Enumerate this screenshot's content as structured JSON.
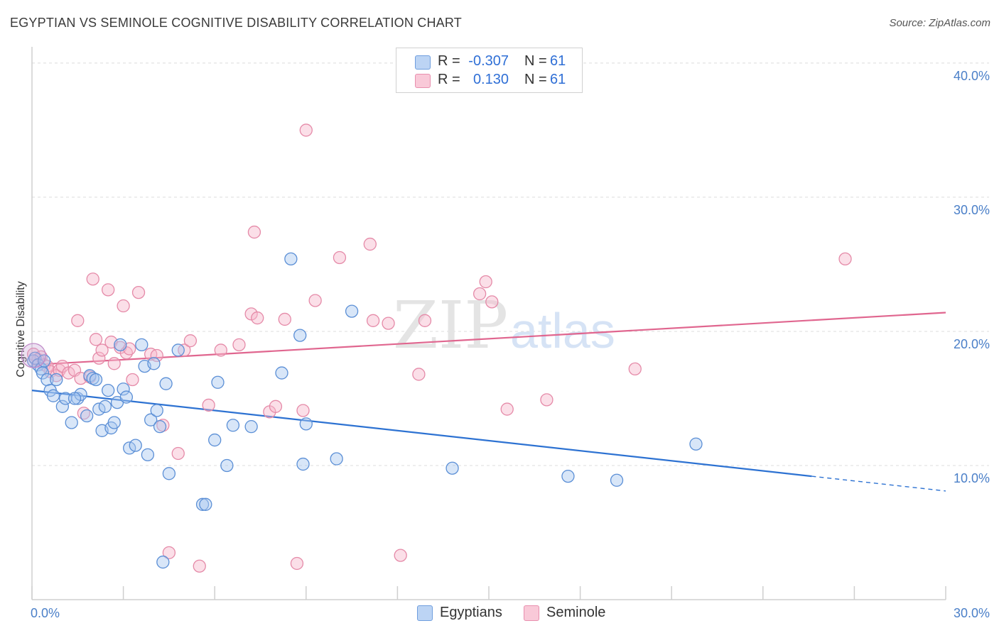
{
  "header": {
    "title": "EGYPTIAN VS SEMINOLE COGNITIVE DISABILITY CORRELATION CHART",
    "source": "Source: ZipAtlas.com"
  },
  "watermark": {
    "zip": "ZIP",
    "atlas": "atlas"
  },
  "legend": {
    "rows": [
      {
        "r_label": "R =",
        "r_value": "-0.307",
        "n_label": "N =",
        "n_value": "61",
        "color": "#a9c8f0"
      },
      {
        "r_label": "R =",
        "r_value": "0.130",
        "n_label": "N =",
        "n_value": "61",
        "color": "#f7b8cc"
      }
    ]
  },
  "bottom_legend": {
    "egyptians": "Egyptians",
    "seminole": "Seminole"
  },
  "colors": {
    "egyptians_fill": "#a9c8f0",
    "egyptians_stroke": "#5b8fd6",
    "egyptians_line": "#2d72d2",
    "seminole_fill": "#f7b8cc",
    "seminole_stroke": "#e58aa8",
    "seminole_line": "#e0668f",
    "tick_text": "#4a7fc8",
    "grid": "#dcdcdc"
  },
  "chart_data": {
    "type": "scatter",
    "title": "EGYPTIAN VS SEMINOLE COGNITIVE DISABILITY CORRELATION CHART",
    "xlabel": "",
    "ylabel": "Cognitive Disability",
    "xlim": [
      0,
      30
    ],
    "ylim": [
      0,
      41
    ],
    "x_tick_labels": [
      "0.0%",
      "30.0%"
    ],
    "y_ticks": [
      10,
      20,
      30,
      40
    ],
    "y_tick_labels": [
      "10.0%",
      "20.0%",
      "30.0%",
      "40.0%"
    ],
    "grid": true,
    "legend_position": "top-center",
    "series": [
      {
        "name": "Egyptians",
        "points": [
          [
            0.05,
            17.8
          ],
          [
            0.1,
            18.0
          ],
          [
            0.2,
            17.5
          ],
          [
            0.3,
            17.2
          ],
          [
            0.35,
            16.9
          ],
          [
            0.4,
            17.8
          ],
          [
            0.5,
            16.4
          ],
          [
            0.6,
            15.6
          ],
          [
            0.7,
            15.2
          ],
          [
            0.8,
            16.4
          ],
          [
            1.0,
            14.4
          ],
          [
            1.1,
            15.0
          ],
          [
            1.3,
            13.2
          ],
          [
            1.5,
            15.0
          ],
          [
            1.6,
            15.3
          ],
          [
            1.8,
            13.7
          ],
          [
            1.9,
            16.7
          ],
          [
            2.0,
            16.5
          ],
          [
            2.1,
            16.4
          ],
          [
            2.2,
            14.2
          ],
          [
            2.3,
            12.6
          ],
          [
            2.4,
            14.4
          ],
          [
            2.5,
            15.6
          ],
          [
            2.6,
            12.8
          ],
          [
            2.7,
            13.2
          ],
          [
            2.8,
            14.7
          ],
          [
            2.9,
            19.0
          ],
          [
            3.0,
            15.7
          ],
          [
            3.1,
            15.1
          ],
          [
            3.2,
            11.3
          ],
          [
            3.4,
            11.5
          ],
          [
            3.6,
            19.0
          ],
          [
            3.7,
            17.4
          ],
          [
            3.8,
            10.8
          ],
          [
            3.9,
            13.4
          ],
          [
            4.0,
            17.6
          ],
          [
            4.1,
            14.1
          ],
          [
            4.2,
            12.9
          ],
          [
            4.4,
            16.1
          ],
          [
            4.8,
            18.6
          ],
          [
            4.5,
            9.4
          ],
          [
            4.3,
            2.8
          ],
          [
            5.6,
            7.1
          ],
          [
            5.7,
            7.1
          ],
          [
            6.0,
            11.9
          ],
          [
            6.1,
            16.2
          ],
          [
            6.4,
            10.0
          ],
          [
            6.6,
            13.0
          ],
          [
            7.2,
            12.9
          ],
          [
            8.2,
            16.9
          ],
          [
            8.5,
            25.4
          ],
          [
            8.8,
            19.7
          ],
          [
            8.9,
            10.1
          ],
          [
            9.0,
            13.1
          ],
          [
            10.0,
            10.5
          ],
          [
            10.5,
            21.5
          ],
          [
            13.8,
            9.8
          ],
          [
            17.6,
            9.2
          ],
          [
            19.2,
            8.9
          ],
          [
            21.8,
            11.6
          ],
          [
            1.4,
            15.0
          ]
        ]
      },
      {
        "name": "Seminole",
        "points": [
          [
            0.05,
            18.3
          ],
          [
            0.2,
            17.9
          ],
          [
            0.3,
            18.1
          ],
          [
            0.4,
            17.5
          ],
          [
            0.5,
            17.4
          ],
          [
            0.6,
            17.0
          ],
          [
            0.8,
            16.7
          ],
          [
            0.9,
            17.1
          ],
          [
            1.0,
            17.4
          ],
          [
            1.2,
            16.9
          ],
          [
            1.4,
            17.1
          ],
          [
            1.5,
            20.8
          ],
          [
            1.6,
            16.5
          ],
          [
            1.7,
            13.9
          ],
          [
            1.9,
            16.6
          ],
          [
            2.0,
            23.9
          ],
          [
            2.1,
            19.4
          ],
          [
            2.2,
            18.0
          ],
          [
            2.3,
            18.6
          ],
          [
            2.5,
            23.1
          ],
          [
            2.6,
            19.2
          ],
          [
            2.7,
            17.6
          ],
          [
            2.9,
            18.8
          ],
          [
            3.0,
            21.9
          ],
          [
            3.1,
            18.4
          ],
          [
            3.2,
            18.7
          ],
          [
            3.3,
            16.4
          ],
          [
            3.5,
            22.9
          ],
          [
            3.9,
            18.3
          ],
          [
            4.1,
            18.2
          ],
          [
            4.3,
            13.0
          ],
          [
            4.5,
            3.5
          ],
          [
            4.8,
            10.9
          ],
          [
            5.0,
            18.6
          ],
          [
            5.2,
            19.3
          ],
          [
            5.5,
            2.5
          ],
          [
            5.8,
            14.5
          ],
          [
            6.2,
            18.6
          ],
          [
            6.8,
            19.0
          ],
          [
            7.2,
            21.3
          ],
          [
            7.3,
            27.4
          ],
          [
            7.4,
            21.0
          ],
          [
            7.8,
            14.0
          ],
          [
            8.0,
            14.4
          ],
          [
            8.3,
            20.9
          ],
          [
            8.7,
            2.7
          ],
          [
            8.9,
            14.1
          ],
          [
            9.0,
            35.0
          ],
          [
            9.3,
            22.3
          ],
          [
            10.1,
            25.5
          ],
          [
            11.1,
            26.5
          ],
          [
            11.2,
            20.8
          ],
          [
            11.7,
            20.6
          ],
          [
            12.1,
            3.3
          ],
          [
            12.7,
            16.8
          ],
          [
            12.9,
            20.8
          ],
          [
            14.7,
            22.8
          ],
          [
            14.9,
            23.7
          ],
          [
            15.1,
            22.2
          ],
          [
            15.6,
            14.2
          ],
          [
            16.9,
            14.9
          ]
        ]
      }
    ],
    "trend_lines": [
      {
        "series": "Egyptians",
        "x": [
          0,
          25.6
        ],
        "y": [
          15.6,
          9.2
        ],
        "dashed_to": [
          30,
          8.1
        ]
      },
      {
        "series": "Seminole",
        "x": [
          0,
          30
        ],
        "y": [
          17.5,
          21.4
        ]
      }
    ],
    "extra_points": [
      {
        "series": "Seminole",
        "x": [
          26.7,
          19.8
        ],
        "y": [
          25.4,
          17.2
        ]
      }
    ]
  }
}
